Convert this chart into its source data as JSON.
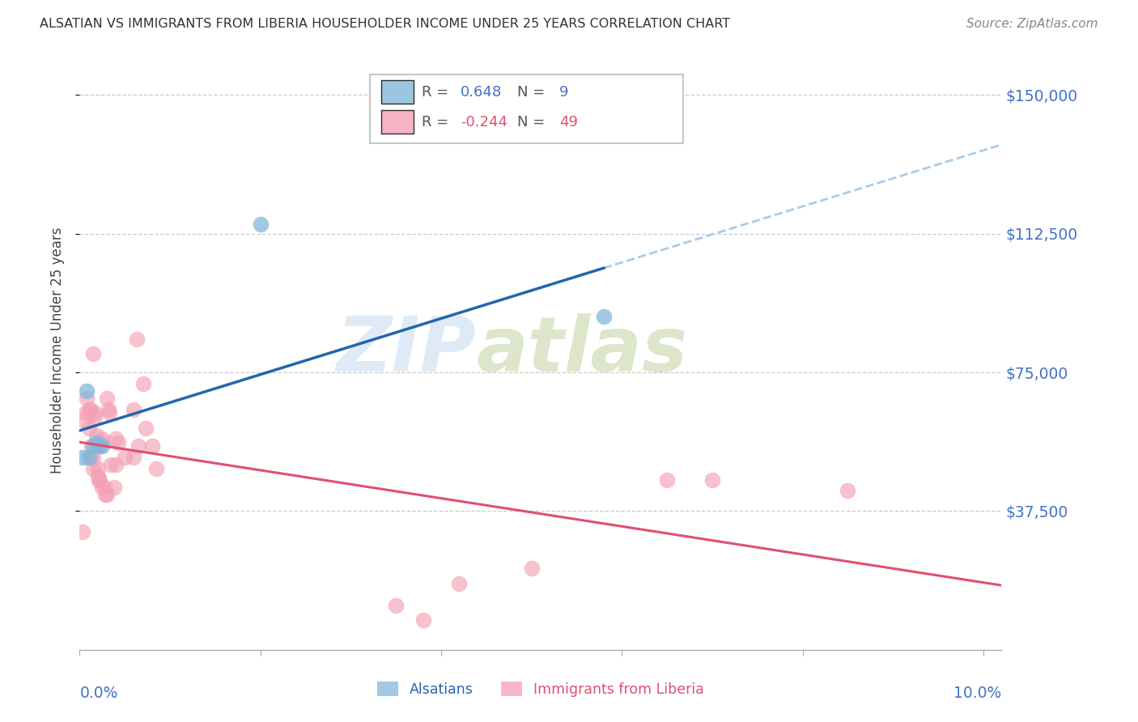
{
  "title": "ALSATIAN VS IMMIGRANTS FROM LIBERIA HOUSEHOLDER INCOME UNDER 25 YEARS CORRELATION CHART",
  "source": "Source: ZipAtlas.com",
  "ylabel": "Householder Income Under 25 years",
  "ytick_labels": [
    "$37,500",
    "$75,000",
    "$112,500",
    "$150,000"
  ],
  "ytick_values": [
    37500,
    75000,
    112500,
    150000
  ],
  "ylim": [
    0,
    162000
  ],
  "xlim": [
    0.0,
    0.102
  ],
  "color_alsatian": "#82b8db",
  "color_liberia": "#f4a0b5",
  "color_line_alsatian": "#2166ac",
  "color_line_liberia": "#e05070",
  "color_dashed": "#aacce8",
  "alsatian_points": [
    [
      0.0003,
      52000
    ],
    [
      0.0008,
      70000
    ],
    [
      0.001,
      52000
    ],
    [
      0.0015,
      55000
    ],
    [
      0.0018,
      56000
    ],
    [
      0.002,
      55000
    ],
    [
      0.0025,
      55000
    ],
    [
      0.02,
      115000
    ],
    [
      0.058,
      90000
    ]
  ],
  "liberia_points": [
    [
      0.0003,
      32000
    ],
    [
      0.0005,
      62000
    ],
    [
      0.0007,
      64000
    ],
    [
      0.0008,
      68000
    ],
    [
      0.001,
      65000
    ],
    [
      0.001,
      60000
    ],
    [
      0.0012,
      65000
    ],
    [
      0.0012,
      52000
    ],
    [
      0.0013,
      55000
    ],
    [
      0.0015,
      52000
    ],
    [
      0.0015,
      49000
    ],
    [
      0.0015,
      80000
    ],
    [
      0.0017,
      64000
    ],
    [
      0.0017,
      63000
    ],
    [
      0.0018,
      58000
    ],
    [
      0.002,
      49000
    ],
    [
      0.002,
      47000
    ],
    [
      0.0021,
      46000
    ],
    [
      0.0022,
      46000
    ],
    [
      0.0022,
      55000
    ],
    [
      0.0025,
      44000
    ],
    [
      0.0025,
      56000
    ],
    [
      0.0025,
      57000
    ],
    [
      0.0027,
      44000
    ],
    [
      0.0028,
      42000
    ],
    [
      0.003,
      42000
    ],
    [
      0.003,
      68000
    ],
    [
      0.0032,
      65000
    ],
    [
      0.0033,
      64000
    ],
    [
      0.0035,
      50000
    ],
    [
      0.0038,
      44000
    ],
    [
      0.004,
      57000
    ],
    [
      0.004,
      50000
    ],
    [
      0.0043,
      56000
    ],
    [
      0.005,
      52000
    ],
    [
      0.006,
      65000
    ],
    [
      0.0063,
      84000
    ],
    [
      0.0065,
      55000
    ],
    [
      0.007,
      72000
    ],
    [
      0.0073,
      60000
    ],
    [
      0.006,
      52000
    ],
    [
      0.008,
      55000
    ],
    [
      0.0085,
      49000
    ],
    [
      0.035,
      12000
    ],
    [
      0.038,
      8000
    ],
    [
      0.042,
      18000
    ],
    [
      0.05,
      22000
    ],
    [
      0.065,
      46000
    ],
    [
      0.07,
      46000
    ],
    [
      0.085,
      43000
    ]
  ]
}
